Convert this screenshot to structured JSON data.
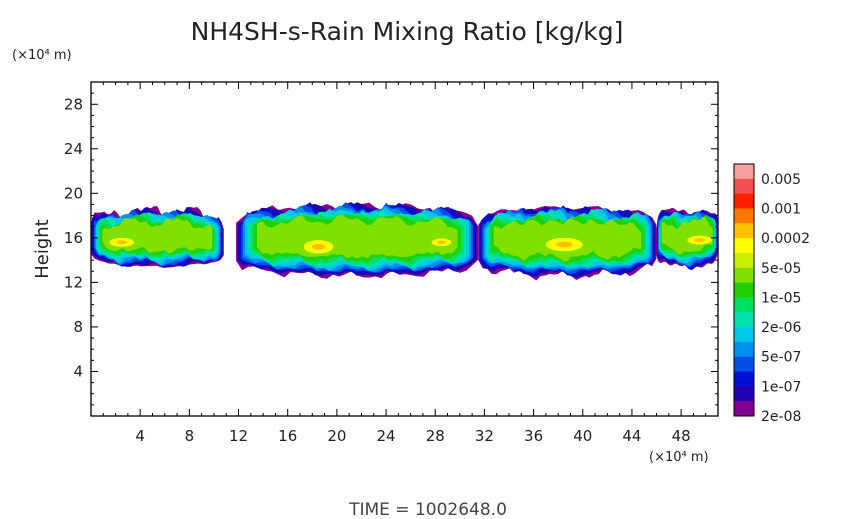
{
  "chart_data": {
    "type": "heatmap",
    "title": "NH4SH-s-Rain Mixing Ratio [kg/kg]",
    "ylabel": "Height",
    "y_units": "(×10⁴ m)",
    "x_units": "(×10⁴ m)",
    "xlim": [
      0,
      51
    ],
    "ylim": [
      0,
      30
    ],
    "x_ticks": [
      "4",
      "8",
      "12",
      "16",
      "20",
      "24",
      "28",
      "32",
      "36",
      "40",
      "44",
      "48"
    ],
    "x_tick_values": [
      4,
      8,
      12,
      16,
      20,
      24,
      28,
      32,
      36,
      40,
      44,
      48
    ],
    "y_ticks": [
      "4",
      "8",
      "12",
      "16",
      "20",
      "24",
      "28"
    ],
    "y_tick_values": [
      4,
      8,
      12,
      16,
      20,
      24,
      28
    ],
    "footer": "TIME  =  1002648.0",
    "colorbar": {
      "labels": [
        "0.005",
        "0.001",
        "0.0002",
        "5e-05",
        "1e-05",
        "2e-06",
        "5e-07",
        "1e-07",
        "2e-08"
      ],
      "colors": [
        "#f8a0a0",
        "#f05050",
        "#ff2000",
        "#ff7800",
        "#ffc000",
        "#ffff00",
        "#c8f000",
        "#80e000",
        "#20d000",
        "#00e060",
        "#00e0b0",
        "#00c8e8",
        "#0090f0",
        "#0050e8",
        "#0010d0",
        "#2000b0",
        "#800090"
      ]
    },
    "regions": [
      {
        "name": "left-edge",
        "x0": 0,
        "x1": 10.8,
        "y_bottom": 14.3,
        "y_top": 19.3
      },
      {
        "name": "central-mass",
        "x0": 11.8,
        "x1": 31.5,
        "y_bottom": 13.5,
        "y_top": 19.8
      },
      {
        "name": "mid-band",
        "x0": 31.5,
        "x1": 46.0,
        "y_bottom": 13.5,
        "y_top": 19.6
      },
      {
        "name": "right-edge",
        "x0": 46.0,
        "x1": 51,
        "y_bottom": 14.3,
        "y_top": 19.3
      }
    ]
  }
}
